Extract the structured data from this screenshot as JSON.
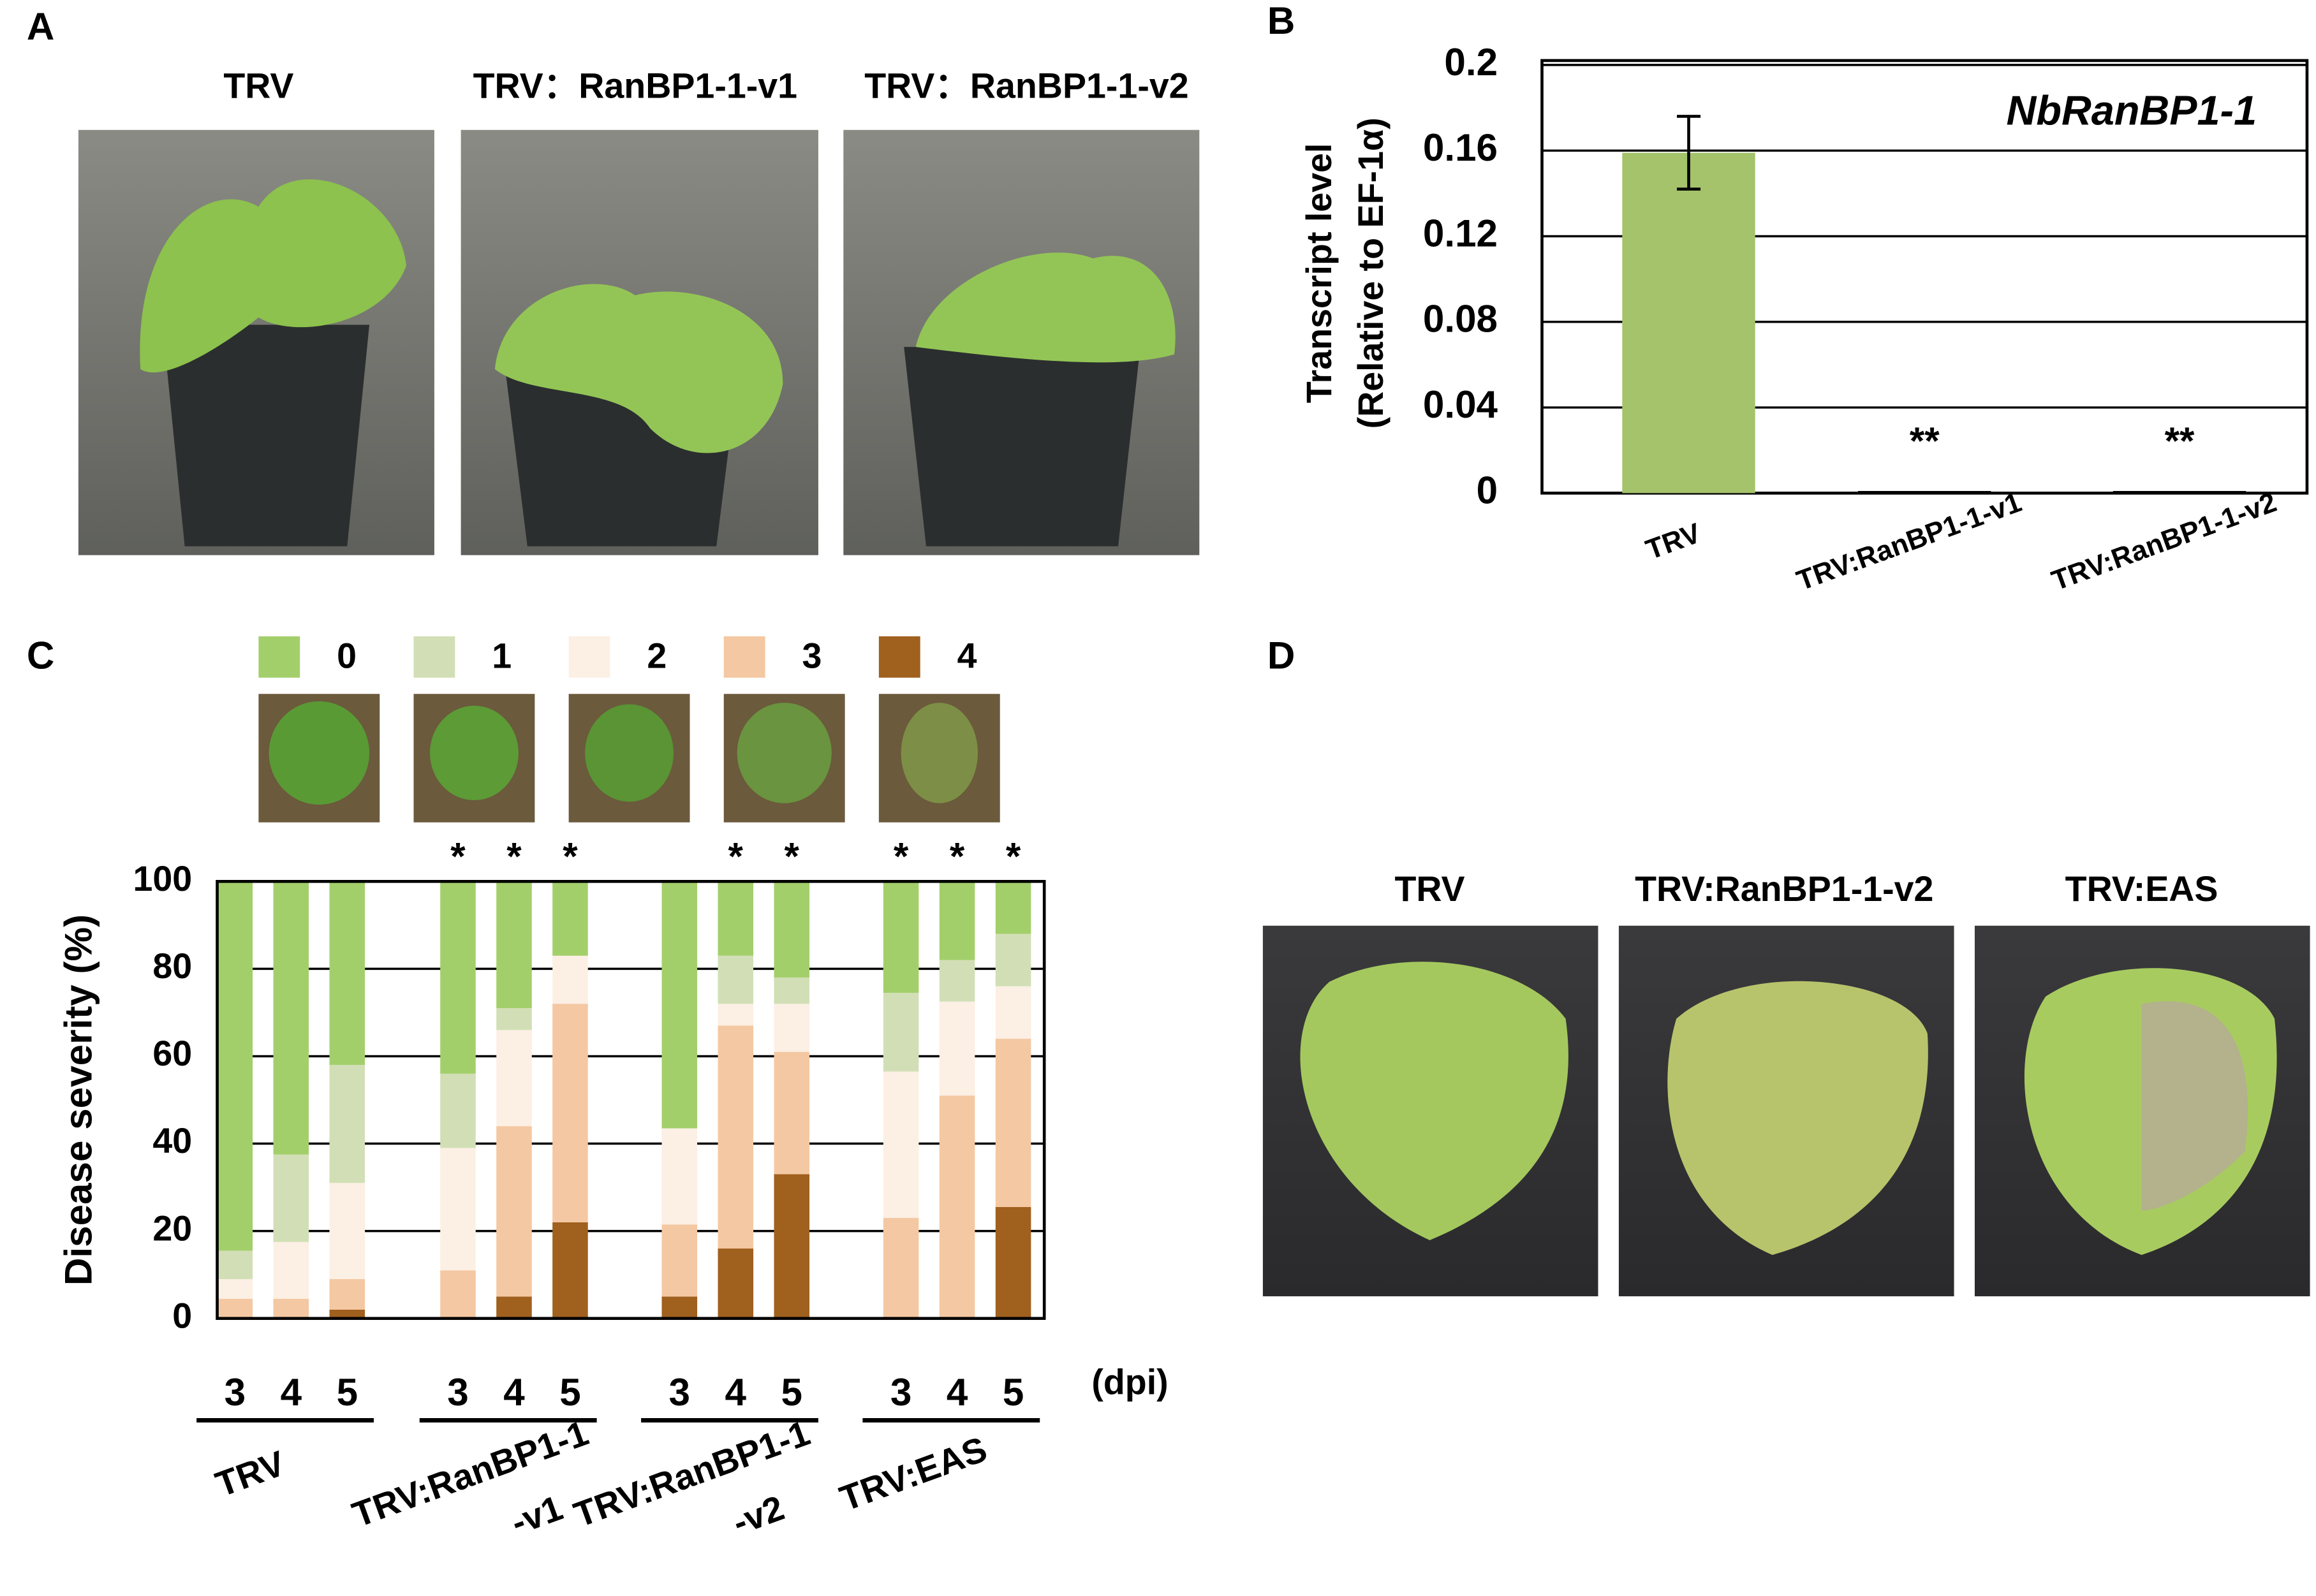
{
  "panel_labels": [
    "A",
    "B",
    "C",
    "D"
  ],
  "panel_a": {
    "titles": [
      "TRV",
      "TRV：RanBP1-1-v1",
      "TRV：RanBP1-1-v2"
    ]
  },
  "panel_d": {
    "titles": [
      "TRV",
      "TRV:RanBP1-1-v2",
      "TRV:EAS"
    ]
  },
  "chart_data": [
    {
      "type": "bar",
      "ylabel": [
        "Transcript level",
        "(Relative to EF-1α)"
      ],
      "annotation": "NbRanBP1-1",
      "categories": [
        "TRV",
        "TRV:RanBP1-1-v1",
        "TRV:RanBP1-1-v2"
      ],
      "values": [
        0.159,
        0.001,
        0.001
      ],
      "errors": [
        0.017,
        null,
        null
      ],
      "significance": [
        null,
        "**",
        "**"
      ],
      "color": "#a4c36b",
      "ylim": [
        0,
        0.2
      ],
      "yticks": [
        0,
        0.04,
        0.08,
        0.12,
        0.16,
        0.2
      ],
      "grid": true
    },
    {
      "type": "stacked_bar",
      "ylabel": "Disease severity  (%)",
      "categories": [
        "3",
        "4",
        "5",
        "3",
        "4",
        "5",
        "3",
        "4",
        "5",
        "3",
        "4",
        "5"
      ],
      "groups": [
        [
          "TRV"
        ],
        [
          "TRV:RanBP1-1",
          "-v1"
        ],
        [
          "TRV:RanBP1-1",
          "-v2"
        ],
        [
          "TRV:EAS"
        ]
      ],
      "x_unit": "(dpi)",
      "significance": [
        null,
        null,
        null,
        "*",
        "*",
        "*",
        null,
        "*",
        "*",
        "*",
        "*",
        "*"
      ],
      "series": [
        {
          "name": "0",
          "color": "#a3cf6b",
          "values": [
            84.5,
            62.5,
            42,
            44,
            29,
            17,
            56.5,
            17,
            22,
            25.5,
            18,
            12
          ]
        },
        {
          "name": "1",
          "color": "#d2dfb6",
          "values": [
            6.5,
            20,
            27,
            17,
            5,
            0,
            0,
            11,
            6,
            18,
            9.5,
            12
          ]
        },
        {
          "name": "2",
          "color": "#fcefe4",
          "values": [
            4.5,
            13,
            22,
            28,
            22,
            11,
            22,
            5,
            11,
            33.5,
            21.5,
            12
          ]
        },
        {
          "name": "3",
          "color": "#f4c8a2",
          "values": [
            4.5,
            4.5,
            7,
            11,
            39,
            50,
            16.5,
            51,
            28,
            23,
            51,
            38.5
          ]
        },
        {
          "name": "4",
          "color": "#a0601e",
          "values": [
            0,
            0,
            2,
            0,
            5,
            22,
            5,
            16,
            33,
            0,
            0,
            25.5
          ]
        }
      ],
      "ylim": [
        0,
        100
      ],
      "yticks": [
        0,
        20,
        40,
        60,
        80,
        100
      ],
      "grid": true
    }
  ]
}
